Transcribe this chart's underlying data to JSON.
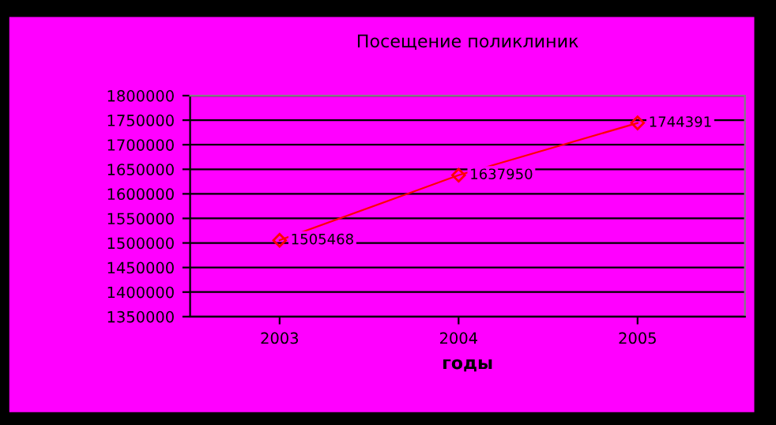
{
  "chart_data": {
    "type": "line",
    "title": "Посещение поликлиник",
    "xlabel": "годы",
    "categories": [
      "2003",
      "2004",
      "2005"
    ],
    "series": [
      {
        "color": "#ff0000",
        "values": [
          1505468,
          1637950,
          1744391
        ]
      }
    ],
    "data_labels": true,
    "marker": "diamond",
    "line_style": "solid",
    "ylim": [
      1350000,
      1800000
    ],
    "yticks": [
      1350000,
      1400000,
      1450000,
      1500000,
      1550000,
      1600000,
      1650000,
      1700000,
      1750000,
      1800000
    ],
    "grid": "y",
    "legend": false
  }
}
